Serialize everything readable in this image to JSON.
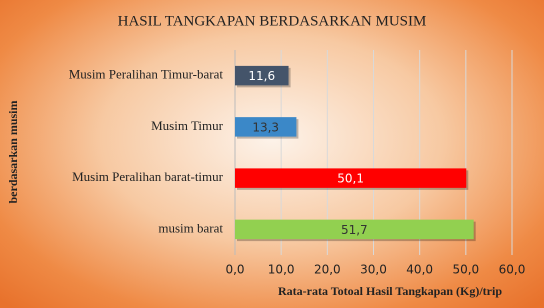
{
  "chart_data": {
    "type": "hbar",
    "title": "HASIL TANGKAPAN BERDASARKAN MUSIM",
    "y_label": "berdasarkan musim",
    "x_label": "Rata-rata Totoal Hasil Tangkapan (Kg)/trip",
    "categories": [
      "Musim Peralihan Timur-barat",
      "Musim Timur",
      "Musim Peralihan barat-timur",
      "musim barat"
    ],
    "values": [
      11.6,
      13.3,
      50.1,
      51.7
    ],
    "value_labels": [
      "11,6",
      "13,3",
      "50,1",
      "51,7"
    ],
    "colors": [
      "#44546a",
      "#3b88c8",
      "#ff0000",
      "#92d050"
    ],
    "xlim": [
      0,
      60
    ],
    "xticks": [
      {
        "value": 0,
        "label": "0,0"
      },
      {
        "value": 10,
        "label": "10,0"
      },
      {
        "value": 20,
        "label": "20,0"
      },
      {
        "value": 30,
        "label": "30,0"
      },
      {
        "value": 40,
        "label": "40,0"
      },
      {
        "value": 50,
        "label": "50,0"
      },
      {
        "value": 60,
        "label": "60,0"
      }
    ],
    "grid": true
  }
}
